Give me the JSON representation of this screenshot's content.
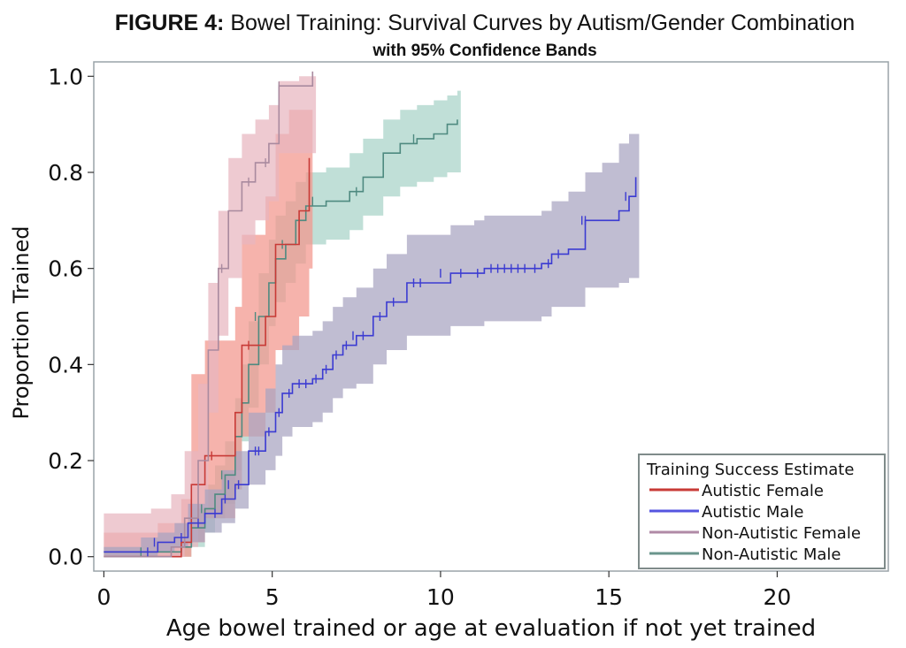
{
  "chart_data": {
    "type": "line",
    "title_bold": "FIGURE 4:",
    "title_rest": " Bowel Training: Survival Curves by Autism/Gender Combination",
    "subtitle": "with 95% Confidence Bands",
    "xlabel": "Age bowel trained or age at evaluation if not yet trained",
    "ylabel": "Proportion Trained",
    "xlim": [
      -0.3,
      23.3
    ],
    "ylim": [
      -0.03,
      1.03
    ],
    "xticks": [
      0,
      5,
      10,
      15,
      20
    ],
    "xtick_labels": [
      "0",
      "5",
      "10",
      "15",
      "20"
    ],
    "yticks": [
      0.0,
      0.2,
      0.4,
      0.6,
      0.8,
      1.0
    ],
    "ytick_labels": [
      "0.0",
      "0.2",
      "0.4",
      "0.6",
      "0.8",
      "1.0"
    ],
    "legend": {
      "title": "Training Success Estimate",
      "position": "bottom-right"
    },
    "series": [
      {
        "name": "Non-Autistic Male",
        "color": "#4e8a80",
        "band_color": "#a8d2c8",
        "points": [
          [
            0,
            0.01
          ],
          [
            1.5,
            0.01
          ],
          [
            2.3,
            0.02
          ],
          [
            2.6,
            0.06
          ],
          [
            3.0,
            0.1
          ],
          [
            3.3,
            0.13
          ],
          [
            3.6,
            0.17
          ],
          [
            3.9,
            0.25
          ],
          [
            4.1,
            0.32
          ],
          [
            4.3,
            0.4
          ],
          [
            4.6,
            0.5
          ],
          [
            4.9,
            0.57
          ],
          [
            5.1,
            0.62
          ],
          [
            5.4,
            0.65
          ],
          [
            5.7,
            0.7
          ],
          [
            6.0,
            0.73
          ],
          [
            6.6,
            0.74
          ],
          [
            7.3,
            0.76
          ],
          [
            7.7,
            0.79
          ],
          [
            8.3,
            0.84
          ],
          [
            8.8,
            0.86
          ],
          [
            9.3,
            0.87
          ],
          [
            9.8,
            0.88
          ],
          [
            10.2,
            0.9
          ],
          [
            10.5,
            0.91
          ]
        ],
        "band": [
          [
            0,
            0,
            0.02
          ],
          [
            1.5,
            0,
            0.03
          ],
          [
            2.3,
            0,
            0.05
          ],
          [
            2.6,
            0.02,
            0.1
          ],
          [
            3.0,
            0.05,
            0.15
          ],
          [
            3.3,
            0.08,
            0.19
          ],
          [
            3.6,
            0.11,
            0.24
          ],
          [
            3.9,
            0.18,
            0.33
          ],
          [
            4.1,
            0.24,
            0.4
          ],
          [
            4.3,
            0.31,
            0.49
          ],
          [
            4.6,
            0.4,
            0.59
          ],
          [
            4.9,
            0.48,
            0.66
          ],
          [
            5.1,
            0.53,
            0.71
          ],
          [
            5.4,
            0.57,
            0.74
          ],
          [
            5.7,
            0.61,
            0.78
          ],
          [
            6.0,
            0.65,
            0.8
          ],
          [
            6.6,
            0.66,
            0.81
          ],
          [
            7.3,
            0.68,
            0.84
          ],
          [
            7.7,
            0.71,
            0.87
          ],
          [
            8.3,
            0.75,
            0.91
          ],
          [
            8.8,
            0.77,
            0.93
          ],
          [
            9.3,
            0.78,
            0.94
          ],
          [
            9.8,
            0.79,
            0.95
          ],
          [
            10.2,
            0.8,
            0.96
          ],
          [
            10.5,
            0.8,
            0.97
          ]
        ],
        "censored": [
          [
            1.1,
            0.01
          ],
          [
            2.9,
            0.1
          ],
          [
            3.5,
            0.17
          ],
          [
            4.5,
            0.5
          ],
          [
            5.3,
            0.65
          ],
          [
            6.2,
            0.74
          ],
          [
            7.5,
            0.76
          ],
          [
            9.2,
            0.87
          ]
        ]
      },
      {
        "name": "Autistic Female",
        "color": "#c83a36",
        "band_color": "#f2958c",
        "points": [
          [
            0,
            0
          ],
          [
            1.6,
            0
          ],
          [
            2.3,
            0.03
          ],
          [
            2.6,
            0.15
          ],
          [
            3.0,
            0.21
          ],
          [
            3.6,
            0.21
          ],
          [
            3.9,
            0.3
          ],
          [
            4.1,
            0.44
          ],
          [
            4.5,
            0.44
          ],
          [
            4.8,
            0.5
          ],
          [
            5.1,
            0.65
          ],
          [
            5.5,
            0.65
          ],
          [
            5.8,
            0.72
          ],
          [
            6.1,
            0.83
          ]
        ],
        "band": [
          [
            0,
            0,
            0.05
          ],
          [
            1.6,
            0,
            0.07
          ],
          [
            2.3,
            0,
            0.12
          ],
          [
            2.6,
            0.03,
            0.38
          ],
          [
            3.0,
            0.08,
            0.45
          ],
          [
            3.6,
            0.08,
            0.45
          ],
          [
            3.9,
            0.14,
            0.52
          ],
          [
            4.1,
            0.25,
            0.67
          ],
          [
            4.5,
            0.25,
            0.67
          ],
          [
            4.8,
            0.3,
            0.75
          ],
          [
            5.1,
            0.43,
            0.88
          ],
          [
            5.5,
            0.43,
            0.93
          ],
          [
            5.8,
            0.5,
            0.93
          ],
          [
            6.1,
            0.6,
            0.93
          ]
        ],
        "censored": [
          [
            3.2,
            0.21
          ],
          [
            4.3,
            0.44
          ]
        ]
      },
      {
        "name": "Non-Autistic Female",
        "color": "#a98a9f",
        "band_color": "#e8b6bf",
        "points": [
          [
            0,
            0
          ],
          [
            1.4,
            0
          ],
          [
            2.0,
            0.02
          ],
          [
            2.4,
            0.08
          ],
          [
            2.8,
            0.2
          ],
          [
            3.1,
            0.43
          ],
          [
            3.4,
            0.6
          ],
          [
            3.7,
            0.72
          ],
          [
            4.1,
            0.78
          ],
          [
            4.5,
            0.82
          ],
          [
            4.9,
            0.86
          ],
          [
            5.2,
            0.98
          ],
          [
            5.8,
            0.98
          ],
          [
            6.2,
            1.01
          ]
        ],
        "band": [
          [
            0,
            0,
            0.09
          ],
          [
            1.4,
            0,
            0.1
          ],
          [
            2.0,
            0,
            0.13
          ],
          [
            2.4,
            0.02,
            0.22
          ],
          [
            2.8,
            0.1,
            0.36
          ],
          [
            3.1,
            0.3,
            0.57
          ],
          [
            3.4,
            0.46,
            0.72
          ],
          [
            3.7,
            0.58,
            0.83
          ],
          [
            4.1,
            0.65,
            0.88
          ],
          [
            4.5,
            0.7,
            0.91
          ],
          [
            4.9,
            0.74,
            0.94
          ],
          [
            5.2,
            0.84,
            0.99
          ],
          [
            5.8,
            0.84,
            1.0
          ],
          [
            6.2,
            0.84,
            1.0
          ]
        ],
        "censored": [
          [
            3.5,
            0.6
          ],
          [
            4.3,
            0.78
          ],
          [
            4.8,
            0.82
          ],
          [
            5.2,
            0.98
          ]
        ]
      },
      {
        "name": "Autistic Male",
        "color": "#3b3bd2",
        "band_color": "#a7a4c0",
        "points": [
          [
            0,
            0.01
          ],
          [
            1.1,
            0.01
          ],
          [
            1.6,
            0.03
          ],
          [
            2.1,
            0.04
          ],
          [
            2.5,
            0.07
          ],
          [
            3.0,
            0.09
          ],
          [
            3.5,
            0.12
          ],
          [
            3.9,
            0.15
          ],
          [
            4.3,
            0.22
          ],
          [
            4.8,
            0.26
          ],
          [
            5.1,
            0.3
          ],
          [
            5.3,
            0.34
          ],
          [
            5.6,
            0.36
          ],
          [
            6.2,
            0.37
          ],
          [
            6.5,
            0.39
          ],
          [
            6.8,
            0.42
          ],
          [
            7.1,
            0.44
          ],
          [
            7.5,
            0.46
          ],
          [
            8.0,
            0.5
          ],
          [
            8.4,
            0.53
          ],
          [
            9.0,
            0.57
          ],
          [
            9.6,
            0.57
          ],
          [
            10.3,
            0.59
          ],
          [
            11.0,
            0.59
          ],
          [
            11.3,
            0.6
          ],
          [
            11.8,
            0.6
          ],
          [
            12.2,
            0.6
          ],
          [
            12.6,
            0.6
          ],
          [
            13.0,
            0.61
          ],
          [
            13.3,
            0.63
          ],
          [
            13.8,
            0.64
          ],
          [
            14.3,
            0.7
          ],
          [
            14.8,
            0.7
          ],
          [
            15.3,
            0.72
          ],
          [
            15.6,
            0.75
          ],
          [
            15.8,
            0.79
          ]
        ],
        "band": [
          [
            0,
            0,
            0.02
          ],
          [
            1.1,
            0,
            0.04
          ],
          [
            1.6,
            0.01,
            0.05
          ],
          [
            2.1,
            0.02,
            0.07
          ],
          [
            2.5,
            0.03,
            0.11
          ],
          [
            3.0,
            0.05,
            0.14
          ],
          [
            3.5,
            0.07,
            0.18
          ],
          [
            3.9,
            0.1,
            0.22
          ],
          [
            4.3,
            0.15,
            0.3
          ],
          [
            4.8,
            0.18,
            0.35
          ],
          [
            5.1,
            0.21,
            0.4
          ],
          [
            5.3,
            0.25,
            0.44
          ],
          [
            5.6,
            0.27,
            0.46
          ],
          [
            6.2,
            0.28,
            0.47
          ],
          [
            6.5,
            0.3,
            0.49
          ],
          [
            6.8,
            0.33,
            0.52
          ],
          [
            7.1,
            0.35,
            0.54
          ],
          [
            7.5,
            0.36,
            0.56
          ],
          [
            8.0,
            0.4,
            0.6
          ],
          [
            8.4,
            0.43,
            0.63
          ],
          [
            9.0,
            0.46,
            0.67
          ],
          [
            9.6,
            0.46,
            0.67
          ],
          [
            10.3,
            0.48,
            0.69
          ],
          [
            11.0,
            0.48,
            0.7
          ],
          [
            11.3,
            0.49,
            0.71
          ],
          [
            11.8,
            0.49,
            0.71
          ],
          [
            12.2,
            0.49,
            0.71
          ],
          [
            12.6,
            0.49,
            0.71
          ],
          [
            13.0,
            0.5,
            0.72
          ],
          [
            13.3,
            0.52,
            0.74
          ],
          [
            13.8,
            0.52,
            0.76
          ],
          [
            14.3,
            0.56,
            0.8
          ],
          [
            14.8,
            0.56,
            0.82
          ],
          [
            15.3,
            0.57,
            0.86
          ],
          [
            15.6,
            0.58,
            0.88
          ],
          [
            15.8,
            0.58,
            0.88
          ]
        ],
        "censored": [
          [
            1.3,
            0.01
          ],
          [
            1.5,
            0.03
          ],
          [
            2.3,
            0.04
          ],
          [
            2.8,
            0.07
          ],
          [
            3.3,
            0.09
          ],
          [
            3.6,
            0.12
          ],
          [
            3.7,
            0.15
          ],
          [
            4.0,
            0.15
          ],
          [
            4.5,
            0.22
          ],
          [
            4.6,
            0.22
          ],
          [
            4.9,
            0.26
          ],
          [
            5.2,
            0.3
          ],
          [
            5.5,
            0.34
          ],
          [
            5.8,
            0.36
          ],
          [
            6.0,
            0.36
          ],
          [
            6.3,
            0.37
          ],
          [
            6.6,
            0.39
          ],
          [
            6.9,
            0.42
          ],
          [
            7.2,
            0.44
          ],
          [
            7.4,
            0.46
          ],
          [
            7.7,
            0.46
          ],
          [
            8.2,
            0.5
          ],
          [
            8.6,
            0.53
          ],
          [
            9.2,
            0.57
          ],
          [
            9.4,
            0.57
          ],
          [
            10.0,
            0.59
          ],
          [
            10.6,
            0.59
          ],
          [
            11.1,
            0.59
          ],
          [
            11.5,
            0.6
          ],
          [
            11.7,
            0.6
          ],
          [
            11.9,
            0.6
          ],
          [
            12.1,
            0.6
          ],
          [
            12.3,
            0.6
          ],
          [
            12.5,
            0.6
          ],
          [
            12.8,
            0.6
          ],
          [
            13.2,
            0.61
          ],
          [
            13.5,
            0.63
          ],
          [
            14.2,
            0.7
          ],
          [
            14.3,
            0.7
          ],
          [
            15.5,
            0.75
          ]
        ]
      }
    ]
  }
}
